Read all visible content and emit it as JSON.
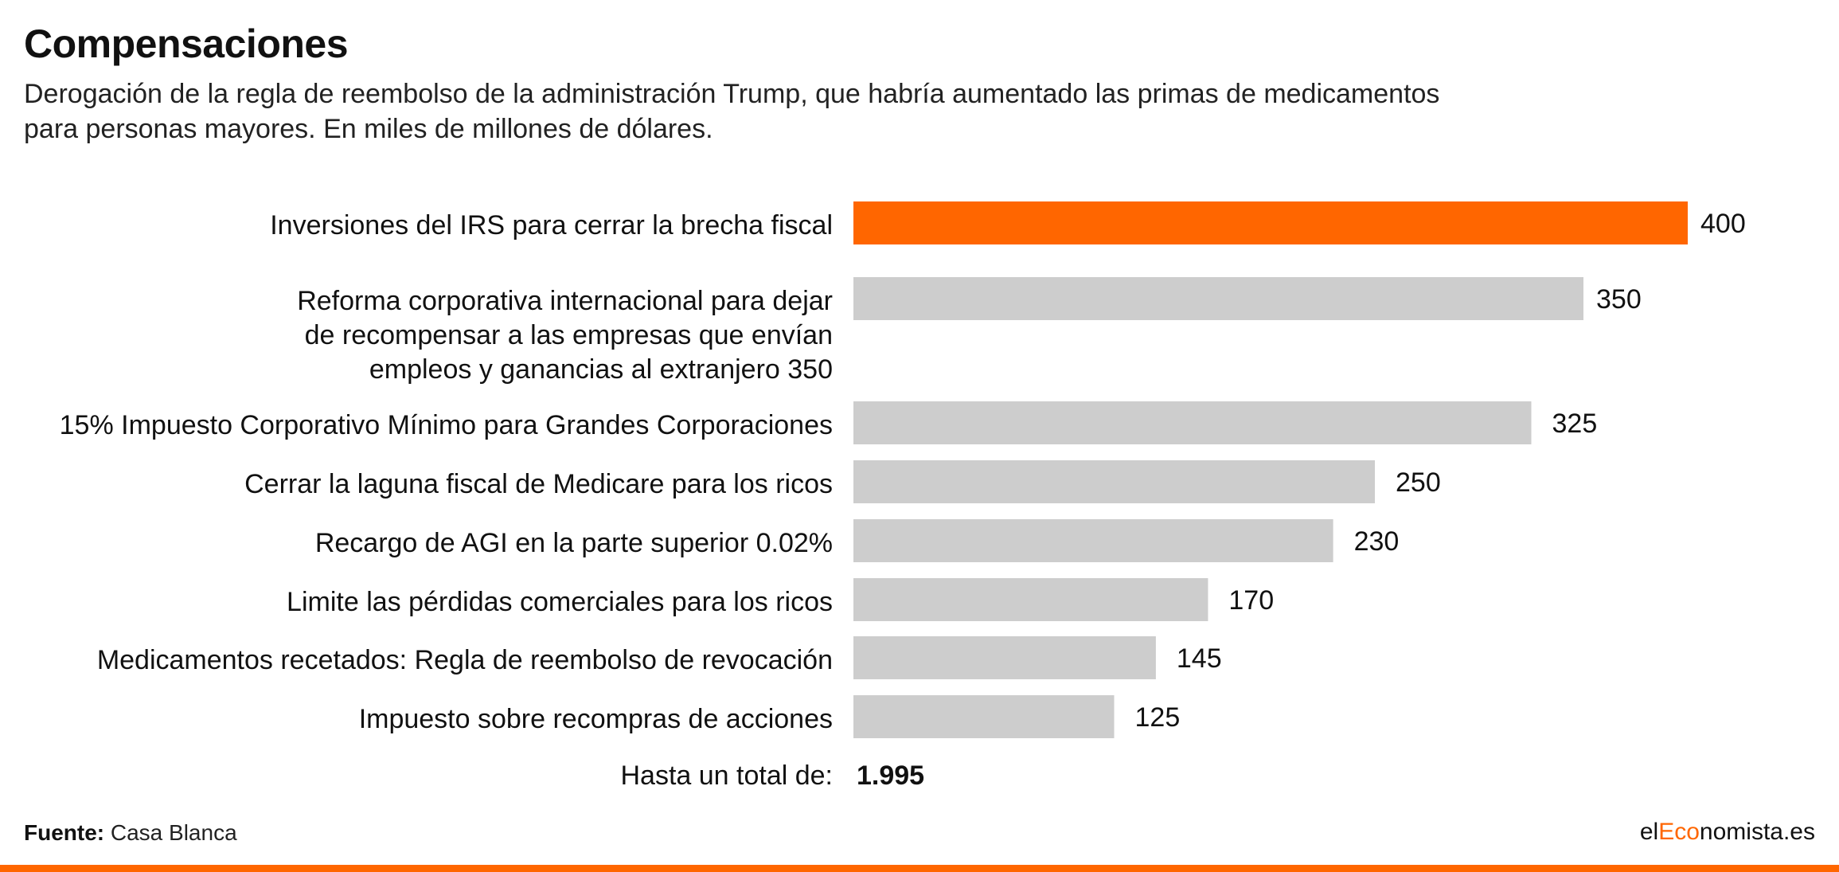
{
  "title": "Compensaciones",
  "subtitle_lines": [
    "Derogación de la regla de reembolso de la administración Trump, que habría aumentado las primas de medicamentos",
    "para personas mayores. En miles de millones de dólares."
  ],
  "colors": {
    "highlight": "#ff6600",
    "bar": "#cdcdcd",
    "text": "#111111"
  },
  "chart_data": {
    "type": "bar",
    "orientation": "horizontal",
    "categories": [
      [
        "Inversiones del IRS para cerrar la brecha fiscal"
      ],
      [
        "Reforma corporativa internacional para dejar",
        "de recompensar a las empresas que envían",
        "empleos y ganancias al extranjero 350"
      ],
      [
        "15% Impuesto Corporativo Mínimo para Grandes Corporaciones"
      ],
      [
        "Cerrar la laguna fiscal de Medicare para los ricos"
      ],
      [
        "Recargo de AGI en la parte superior 0.02%"
      ],
      [
        "Limite las pérdidas comerciales para los ricos"
      ],
      [
        "Medicamentos recetados: Regla de reembolso de revocación"
      ],
      [
        "Impuesto sobre recompras de acciones"
      ]
    ],
    "values": [
      400,
      350,
      325,
      250,
      230,
      170,
      145,
      125
    ],
    "value_labels": [
      "400",
      "350",
      "325",
      "250",
      "230",
      "170",
      "145",
      "125"
    ],
    "highlight_index": 0,
    "xlim": [
      0,
      400
    ],
    "total_label": "Hasta un total de:",
    "total_value": "1.995",
    "grid": false,
    "legend": "none"
  },
  "footer": {
    "source_label": "Fuente:",
    "source_value": "Casa Blanca",
    "brand_prefix": "el",
    "brand_accent": "Eco",
    "brand_suffix": "nomista.es"
  }
}
